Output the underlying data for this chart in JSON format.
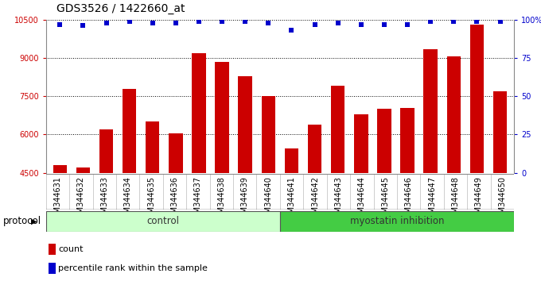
{
  "title": "GDS3526 / 1422660_at",
  "samples": [
    "GSM344631",
    "GSM344632",
    "GSM344633",
    "GSM344634",
    "GSM344635",
    "GSM344636",
    "GSM344637",
    "GSM344638",
    "GSM344639",
    "GSM344640",
    "GSM344641",
    "GSM344642",
    "GSM344643",
    "GSM344644",
    "GSM344645",
    "GSM344646",
    "GSM344647",
    "GSM344648",
    "GSM344649",
    "GSM344650"
  ],
  "bar_values": [
    4800,
    4700,
    6200,
    7800,
    6500,
    6050,
    9200,
    8850,
    8300,
    7500,
    5450,
    6400,
    7900,
    6800,
    7000,
    7050,
    9350,
    9050,
    10300,
    7700
  ],
  "percentile_values": [
    97,
    96,
    98,
    99,
    98,
    98,
    99,
    99,
    99,
    98,
    93,
    97,
    98,
    97,
    97,
    97,
    99,
    99,
    99,
    99
  ],
  "bar_color": "#cc0000",
  "percentile_color": "#0000cc",
  "ylim_left": [
    4500,
    10500
  ],
  "ylim_right": [
    0,
    100
  ],
  "yticks_left": [
    4500,
    6000,
    7500,
    9000,
    10500
  ],
  "yticks_right": [
    0,
    25,
    50,
    75,
    100
  ],
  "ytick_labels_right": [
    "0",
    "25",
    "50",
    "75",
    "100%"
  ],
  "control_count": 10,
  "control_label": "control",
  "treatment_label": "myostatin inhibition",
  "protocol_label": "protocol",
  "legend_count_label": "count",
  "legend_percentile_label": "percentile rank within the sample",
  "control_bg": "#ccffcc",
  "treatment_bg": "#44cc44",
  "xticklabel_bg": "#d0d0d0",
  "title_fontsize": 10,
  "tick_fontsize": 7,
  "bar_width": 0.6
}
